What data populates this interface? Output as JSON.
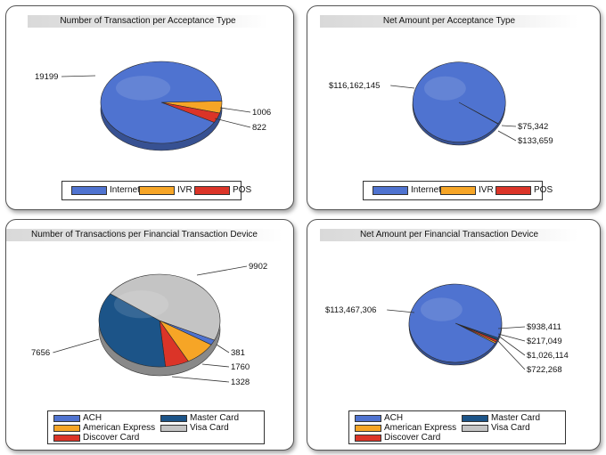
{
  "colors": {
    "blue": "#4f73d0",
    "yellow": "#f6a526",
    "red": "#db3428",
    "navy": "#1c5488",
    "grey": "#c4c4c4"
  },
  "chart_data": [
    {
      "type": "pie",
      "title": "Number of Transaction per Acceptance Type",
      "categories": [
        "Internet",
        "IVR",
        "POS"
      ],
      "values": [
        19199,
        1006,
        822
      ],
      "value_labels": [
        "19199",
        "1006",
        "822"
      ],
      "colors": [
        "#4f73d0",
        "#f6a526",
        "#db3428"
      ],
      "legend": "bottom"
    },
    {
      "type": "pie",
      "title": "Net Amount per Acceptance Type",
      "categories": [
        "Internet",
        "IVR",
        "POS"
      ],
      "values": [
        116162145,
        75342,
        133659
      ],
      "value_labels": [
        "$116,162,145",
        "$75,342",
        "$133,659"
      ],
      "colors": [
        "#4f73d0",
        "#f6a526",
        "#db3428"
      ],
      "legend": "bottom"
    },
    {
      "type": "pie",
      "title": "Number of Transactions per Financial Transaction Device",
      "categories": [
        "ACH",
        "Master Card",
        "American Express",
        "Visa Card",
        "Discover Card"
      ],
      "values": [
        381,
        7656,
        1760,
        9902,
        1328
      ],
      "value_labels": [
        "381",
        "7656",
        "1760",
        "9902",
        "1328"
      ],
      "colors": [
        "#4f73d0",
        "#1c5488",
        "#f6a526",
        "#c4c4c4",
        "#db3428"
      ],
      "legend": "bottom"
    },
    {
      "type": "pie",
      "title": "Net Amount per Financial Transaction Device",
      "categories": [
        "ACH",
        "Master Card",
        "American Express",
        "Visa Card",
        "Discover Card"
      ],
      "values": [
        113467306,
        938411,
        722268,
        217049,
        1026114
      ],
      "value_labels": [
        "$113,467,306",
        "$938,411",
        "$722,268",
        "$217,049",
        "$1,026,114"
      ],
      "colors": [
        "#4f73d0",
        "#1c5488",
        "#f6a526",
        "#c4c4c4",
        "#db3428"
      ],
      "legend": "bottom"
    }
  ]
}
